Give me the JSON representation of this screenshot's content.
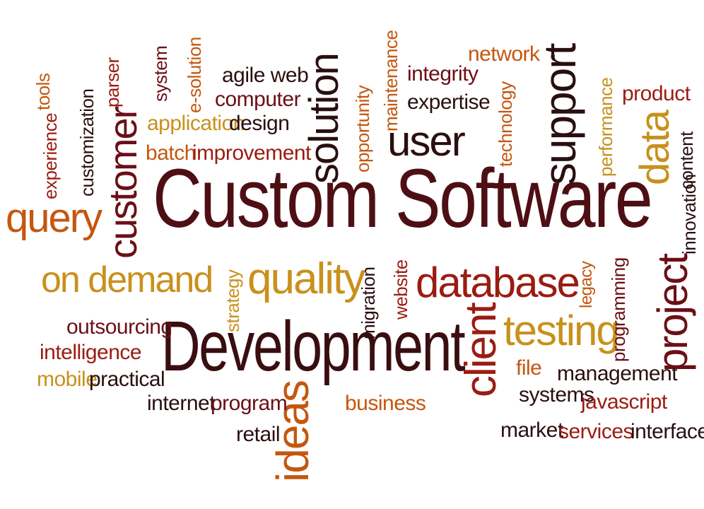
{
  "colors": {
    "dark": "#2a0f10",
    "maroon": "#6b0f16",
    "red": "#9a1c12",
    "orange": "#c4570f",
    "gold": "#c8911c"
  },
  "words": {
    "custom_software": "Custom Software",
    "development": "Development",
    "customer": "customer",
    "query": "query",
    "on_demand": "on demand",
    "quality": "quality",
    "database": "database",
    "testing": "testing",
    "project": "project",
    "client": "client",
    "ideas": "ideas",
    "solution": "solution",
    "user": "user",
    "support": "support",
    "data": "data",
    "agile_web": "agile web",
    "computer": "computer",
    "application": "application",
    "design": "design",
    "batch": "batch",
    "improvement": "improvement",
    "integrity": "integrity",
    "expertise": "expertise",
    "network": "network",
    "product": "product",
    "maintenance": "maintenance",
    "opportunity": "opportunity",
    "technology": "technology",
    "performance": "performance",
    "content": "content",
    "innovation": "innovation",
    "tools": "tools",
    "experience": "experience",
    "customization": "customization",
    "parser": "parser",
    "system": "system",
    "e_solution": "e-solution",
    "strategy": "strategy",
    "migration": "migration",
    "website": "website",
    "legacy": "legacy",
    "programming": "programming",
    "outsourcing": "outsourcing",
    "intelligence": "intelligence",
    "mobile": "mobile",
    "practical": "practical",
    "internet": "internet",
    "program": "program",
    "retail": "retail",
    "business": "business",
    "file": "file",
    "management": "management",
    "systems": "systems",
    "javascript": "javascript",
    "market": "market",
    "services": "services",
    "interface": "interface"
  }
}
